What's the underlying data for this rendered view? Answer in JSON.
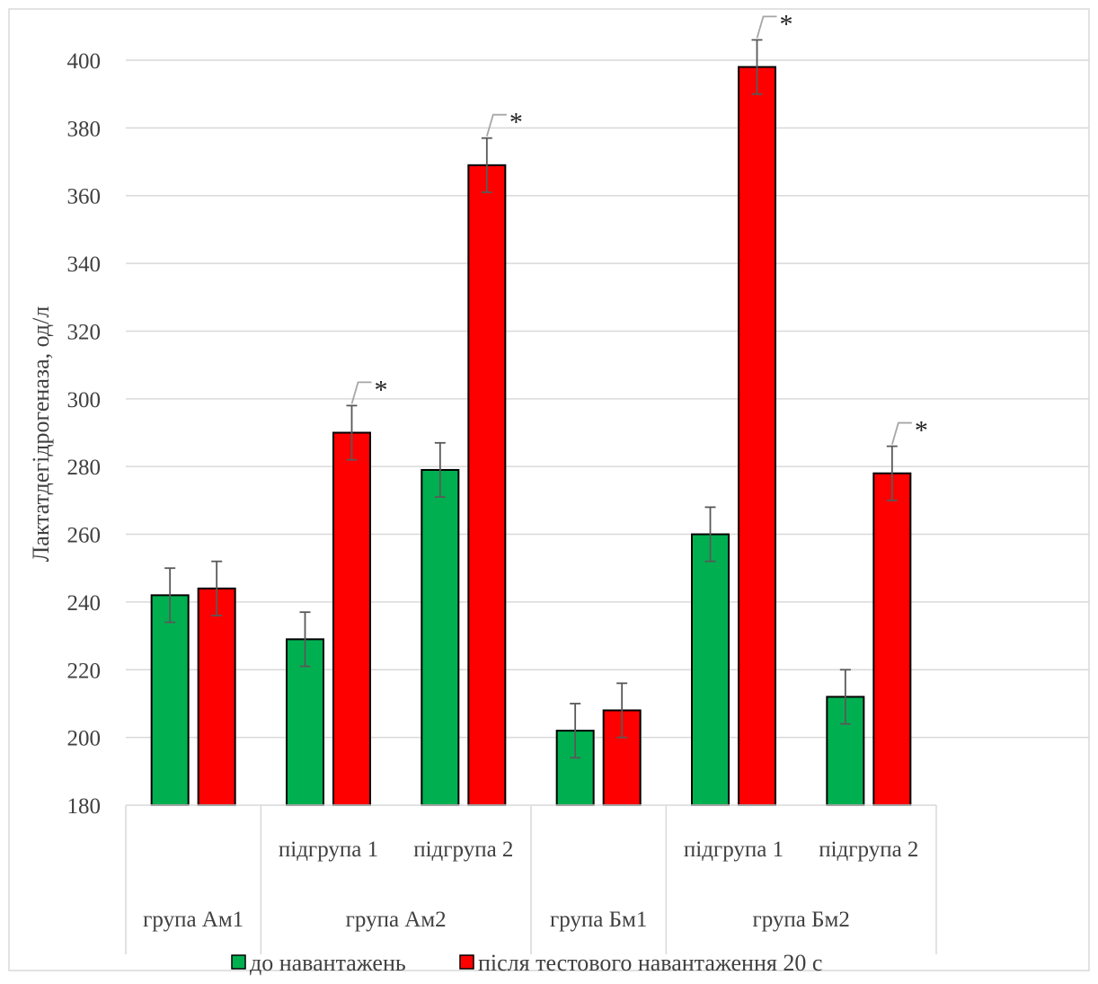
{
  "chart_data": {
    "type": "bar",
    "ylabel": "Лактатдегідрогеназа, од/л",
    "ylim": [
      180,
      410
    ],
    "yticks": [
      180,
      200,
      220,
      240,
      260,
      280,
      300,
      320,
      340,
      360,
      380,
      400
    ],
    "categories": [
      {
        "group": "група Ам1",
        "sub": ""
      },
      {
        "group": "група Ам2",
        "sub": "підгрупа 1"
      },
      {
        "group": "група Ам2",
        "sub": "підгрупа 2"
      },
      {
        "group": "група Бм1",
        "sub": ""
      },
      {
        "group": "група Бм2",
        "sub": "підгрупа 1"
      },
      {
        "group": "група Бм2",
        "sub": "підгрупа 2"
      }
    ],
    "groups": [
      "група Ам1",
      "група Ам2",
      "група Бм1",
      "група Бм2"
    ],
    "series": [
      {
        "name": "до навантажень",
        "color": "#00b050",
        "values": [
          242,
          229,
          279,
          202,
          260,
          212
        ],
        "errors": [
          8,
          8,
          8,
          8,
          8,
          8
        ]
      },
      {
        "name": "після тестового навантаження 20 с",
        "color": "#ff0000",
        "values": [
          244,
          290,
          369,
          208,
          398,
          278
        ],
        "errors": [
          8,
          8,
          8,
          8,
          8,
          8
        ]
      }
    ],
    "significance_marker": "*",
    "significant": [
      false,
      true,
      true,
      false,
      true,
      true
    ],
    "grid": true,
    "legend_position": "bottom"
  }
}
